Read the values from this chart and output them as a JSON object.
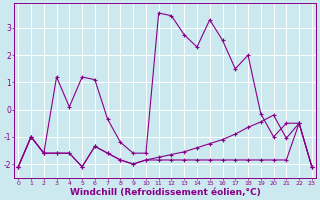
{
  "background_color": "#cce9f0",
  "line_color": "#880088",
  "grid_color": "#ffffff",
  "xlabel": "Windchill (Refroidissement éolien,°C)",
  "xlabel_fontsize": 6.5,
  "ytick_labels": [
    "-2",
    "-1",
    "0",
    "1",
    "2",
    "3"
  ],
  "ylim": [
    -2.5,
    3.9
  ],
  "xlim": [
    -0.3,
    23.3
  ],
  "series1_y": [
    -2.1,
    -1.0,
    -1.6,
    1.2,
    0.1,
    1.2,
    1.1,
    -0.35,
    -1.2,
    -1.6,
    -1.6,
    3.55,
    3.45,
    2.75,
    2.3,
    3.3,
    2.55,
    1.5,
    2.0,
    -0.15,
    -1.0,
    -0.5,
    -0.5,
    -2.1
  ],
  "series2_y": [
    -2.1,
    -1.0,
    -1.6,
    -1.6,
    -1.6,
    -2.1,
    -1.35,
    -1.6,
    -1.85,
    -2.0,
    -1.85,
    -1.75,
    -1.65,
    -1.55,
    -1.4,
    -1.25,
    -1.1,
    -0.9,
    -0.65,
    -0.45,
    -0.2,
    -1.05,
    -0.5,
    -2.1
  ],
  "series3_y": [
    -2.1,
    -1.0,
    -1.6,
    -1.6,
    -1.6,
    -2.1,
    -1.35,
    -1.6,
    -1.85,
    -2.0,
    -1.85,
    -1.85,
    -1.85,
    -1.85,
    -1.85,
    -1.85,
    -1.85,
    -1.85,
    -1.85,
    -1.85,
    -1.85,
    -1.85,
    -0.5,
    -2.1
  ],
  "marker": "+",
  "markersize": 3,
  "linewidth": 0.8
}
